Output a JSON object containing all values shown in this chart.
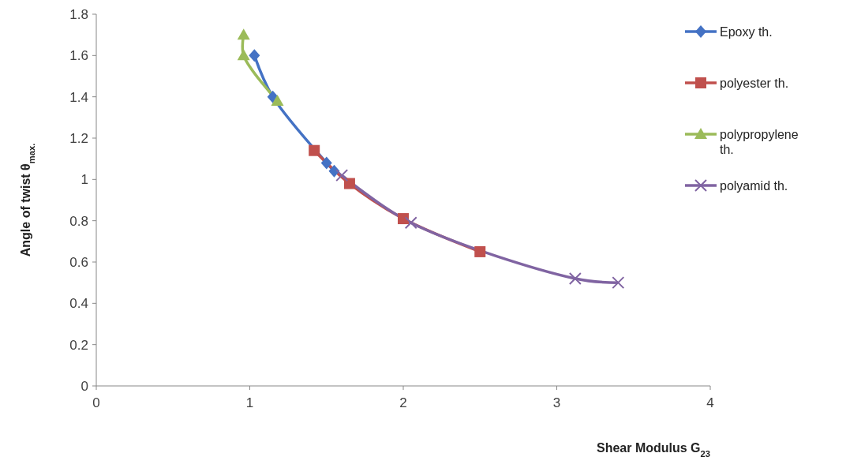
{
  "chart_data": {
    "type": "line",
    "xlabel": "Shear  Modulus  G$_{23}$",
    "ylabel": "Angle of twist  θ$_{max.}$",
    "xlim": [
      0,
      4
    ],
    "xticks": [
      0,
      1,
      2,
      3,
      4
    ],
    "ylim": [
      0,
      1.8
    ],
    "yticks": [
      0,
      0.2,
      0.4,
      0.6,
      0.8,
      1,
      1.2,
      1.4,
      1.6,
      1.8
    ],
    "grid": false,
    "legend": "right",
    "series": [
      {
        "name": "Epoxy th.",
        "color": "#4472c4",
        "marker": "diamond",
        "x": [
          1.03,
          1.15,
          1.5,
          1.55
        ],
        "values": [
          1.6,
          1.4,
          1.08,
          1.04
        ]
      },
      {
        "name": "polyester th.",
        "color": "#c0504d",
        "marker": "square",
        "x": [
          1.42,
          1.65,
          2.0,
          2.5
        ],
        "values": [
          1.14,
          0.98,
          0.81,
          0.65
        ]
      },
      {
        "name": "polypropylene th.",
        "color": "#9bbb59",
        "marker": "triangle",
        "x": [
          0.96,
          0.96,
          1.18
        ],
        "values": [
          1.7,
          1.6,
          1.38
        ]
      },
      {
        "name": "polyamid th.",
        "color": "#8064a2",
        "marker": "cross",
        "x": [
          1.6,
          2.05,
          3.12,
          3.4
        ],
        "values": [
          1.02,
          0.79,
          0.52,
          0.5
        ]
      }
    ]
  }
}
